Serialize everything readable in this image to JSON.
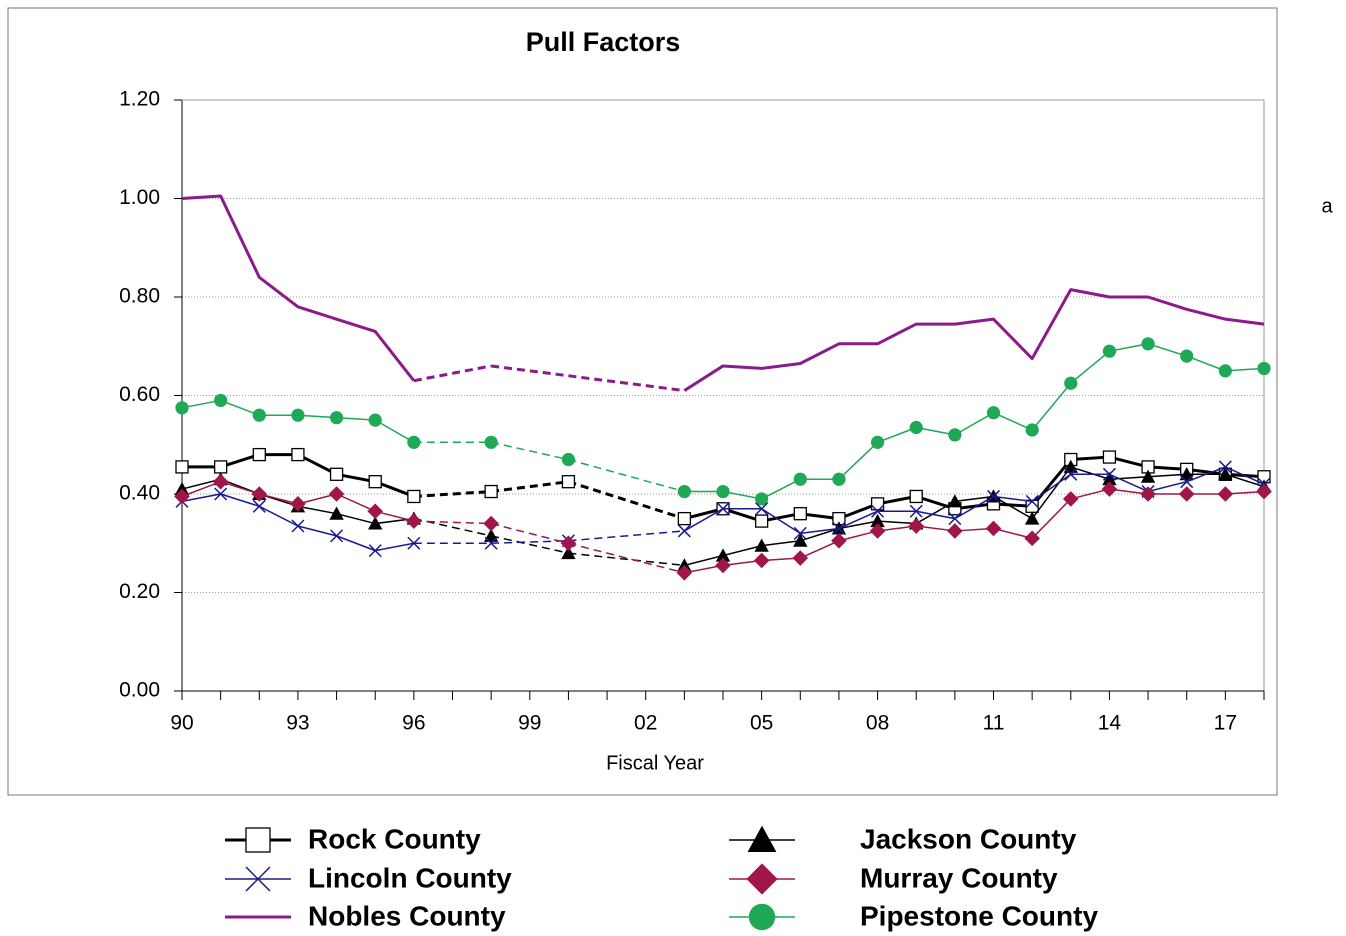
{
  "chart_data": {
    "type": "line",
    "title": "Pull Factors",
    "x_label": "Fiscal Year",
    "stray_text": "a",
    "categories": [
      "90",
      null,
      null,
      "93",
      null,
      null,
      "96",
      null,
      null,
      "99",
      null,
      null,
      "02",
      null,
      null,
      "05",
      null,
      null,
      "08",
      null,
      null,
      "11",
      null,
      null,
      "14",
      null,
      null,
      "17",
      null
    ],
    "ylim": [
      0,
      1.2
    ],
    "yticks": [
      {
        "value": 0,
        "label": "0.00"
      },
      {
        "value": 0.2,
        "label": "0.20"
      },
      {
        "value": 0.4,
        "label": "0.40"
      },
      {
        "value": 0.6,
        "label": "0.60"
      },
      {
        "value": 0.8,
        "label": "0.80"
      },
      {
        "value": 1.0,
        "label": "1.00"
      },
      {
        "value": 1.2,
        "label": "1.20"
      }
    ],
    "grid": true,
    "series": [
      {
        "name": "Rock County",
        "color": "#000000",
        "marker": "square",
        "width": 3,
        "values": [
          0.455,
          0.455,
          0.48,
          0.48,
          0.44,
          0.425,
          0.395,
          null,
          0.405,
          null,
          0.425,
          null,
          null,
          0.35,
          0.37,
          0.345,
          0.36,
          0.35,
          0.38,
          0.395,
          0.37,
          0.38,
          0.375,
          0.47,
          0.475,
          0.455,
          0.45,
          0.44,
          0.435
        ]
      },
      {
        "name": "Jackson County",
        "color": "#000000",
        "marker": "triangle",
        "width": 1.5,
        "values": [
          0.41,
          0.43,
          0.4,
          0.375,
          0.36,
          0.34,
          0.35,
          null,
          0.315,
          null,
          0.28,
          null,
          null,
          0.255,
          0.275,
          0.295,
          0.305,
          0.33,
          0.345,
          0.34,
          0.385,
          0.395,
          0.35,
          0.455,
          0.43,
          0.435,
          0.44,
          0.44,
          0.415
        ]
      },
      {
        "name": "Lincoln County",
        "color": "#1a1a8c",
        "marker": "x",
        "width": 1.5,
        "values": [
          0.385,
          0.4,
          0.375,
          0.335,
          0.315,
          0.285,
          0.3,
          null,
          0.3,
          null,
          0.305,
          null,
          null,
          0.325,
          0.37,
          0.37,
          0.32,
          0.33,
          0.365,
          0.365,
          0.35,
          0.395,
          0.385,
          0.44,
          0.44,
          0.405,
          0.425,
          0.455,
          0.42
        ]
      },
      {
        "name": "Murray County",
        "color": "#a0164a",
        "marker": "diamond",
        "width": 1.5,
        "values": [
          0.395,
          0.425,
          0.4,
          0.38,
          0.4,
          0.365,
          0.345,
          null,
          0.34,
          null,
          0.3,
          null,
          null,
          0.24,
          0.255,
          0.265,
          0.27,
          0.305,
          0.325,
          0.335,
          0.325,
          0.33,
          0.31,
          0.39,
          0.41,
          0.4,
          0.4,
          0.4,
          0.405
        ]
      },
      {
        "name": "Nobles County",
        "color": "#8b1a8b",
        "marker": "none",
        "width": 3,
        "values": [
          1.0,
          1.005,
          0.84,
          0.78,
          0.755,
          0.73,
          0.63,
          null,
          0.66,
          null,
          0.64,
          null,
          null,
          0.61,
          0.66,
          0.655,
          0.665,
          0.705,
          0.705,
          0.745,
          0.745,
          0.755,
          0.675,
          0.815,
          0.8,
          0.8,
          0.775,
          0.755,
          0.745
        ]
      },
      {
        "name": "Pipestone County",
        "color": "#1fa855",
        "marker": "circle",
        "width": 1.5,
        "values": [
          0.575,
          0.59,
          0.56,
          0.56,
          0.555,
          0.55,
          0.505,
          null,
          0.505,
          null,
          0.47,
          null,
          null,
          0.405,
          0.405,
          0.39,
          0.43,
          0.43,
          0.505,
          0.535,
          0.52,
          0.565,
          0.53,
          0.625,
          0.69,
          0.705,
          0.68,
          0.65,
          0.655
        ]
      }
    ]
  }
}
